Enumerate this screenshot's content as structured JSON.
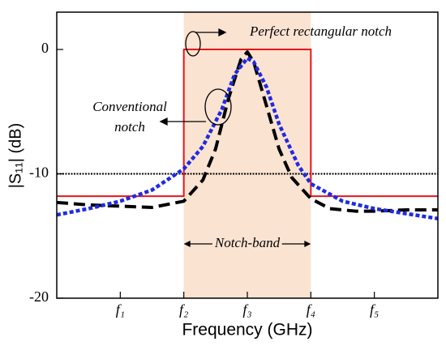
{
  "chart_data": {
    "type": "line",
    "xlabel": "Frequency  (GHz)",
    "ylabel": "|S₁₁| (dB)",
    "xlim": [
      0,
      6
    ],
    "ylim": [
      -20,
      3
    ],
    "xticks": [
      {
        "value": 1,
        "label": "f₁"
      },
      {
        "value": 2,
        "label": "f₂"
      },
      {
        "value": 3,
        "label": "f₃"
      },
      {
        "value": 4,
        "label": "f₄"
      },
      {
        "value": 5,
        "label": "f₅"
      }
    ],
    "yticks": [
      0,
      -10,
      -20
    ],
    "notch_band": {
      "label": "Notch-band",
      "range": [
        2,
        4
      ],
      "color": "#fbe3d2"
    },
    "reference_line": {
      "value": -10,
      "color": "#000000"
    },
    "annotations": [
      "Perfect rectangular notch",
      "Conventional",
      "notch"
    ],
    "series": [
      {
        "color": "#e8141b",
        "style": "solid",
        "x": [
          0,
          2,
          2,
          4,
          4,
          6
        ],
        "values": [
          -11.8,
          -11.8,
          0,
          0,
          -11.8,
          -11.8
        ]
      },
      {
        "color": "#000000",
        "style": "dashed",
        "x": [
          0,
          0.5,
          1,
          1.5,
          2,
          2.3,
          2.5,
          2.7,
          2.9,
          3,
          3.1,
          3.3,
          3.5,
          3.7,
          4,
          4.3,
          4.7,
          5,
          5.5,
          6
        ],
        "values": [
          -12.3,
          -12.5,
          -12.6,
          -12.7,
          -12.2,
          -10.5,
          -8,
          -4,
          -0.8,
          -0.2,
          -1,
          -4.5,
          -8,
          -10.3,
          -12,
          -12.8,
          -13,
          -13,
          -12.9,
          -12.9
        ]
      },
      {
        "color": "#1f2be0",
        "style": "dotted",
        "x": [
          0,
          0.5,
          1,
          1.5,
          2,
          2.3,
          2.6,
          2.8,
          3,
          3.1,
          3.3,
          3.5,
          3.8,
          4,
          4.5,
          5,
          5.5,
          6
        ],
        "values": [
          -13.3,
          -12.8,
          -12.2,
          -11.3,
          -9.6,
          -7.8,
          -4.8,
          -2,
          -0.7,
          -1,
          -3,
          -6,
          -9.3,
          -10.8,
          -12.2,
          -12.8,
          -13.2,
          -13.6
        ]
      }
    ]
  }
}
